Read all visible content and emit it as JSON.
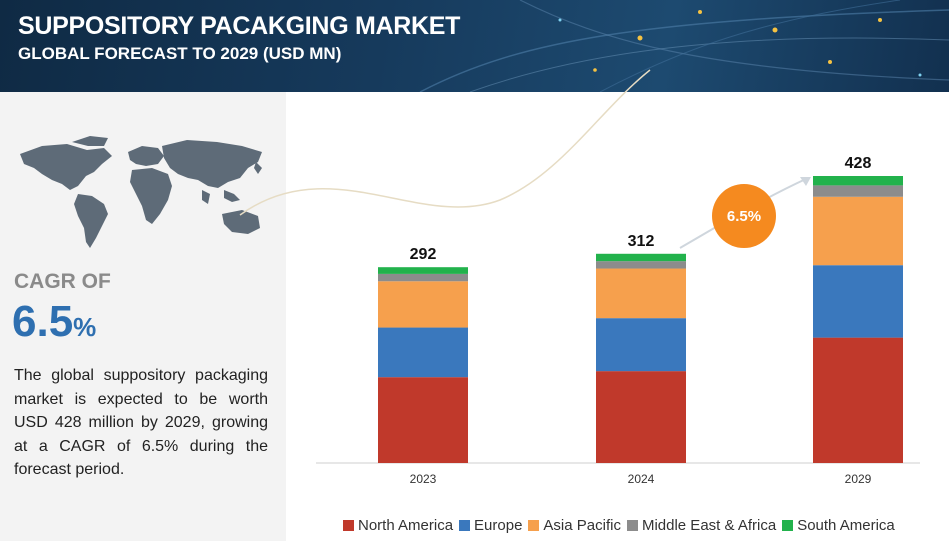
{
  "header": {
    "title": "SUPPOSITORY PACAKGING MARKET",
    "subtitle": "GLOBAL FORECAST TO 2029 (USD MN)"
  },
  "left_panel": {
    "cagr_label": "CAGR OF",
    "cagr_number": "6.5",
    "cagr_percent": "%",
    "description": "The global suppository packaging market is expected to be worth USD 428 million by 2029, growing at a CAGR of 6.5% during the forecast period."
  },
  "cagr_badge": "6.5%",
  "colors": {
    "header_bg": "#163a5c",
    "cagr_blue": "#2e6fb0",
    "badge_orange": "#f58a1f",
    "north_america": "#c0392b",
    "europe": "#3a78bd",
    "asia_pacific": "#f6a04d",
    "middle_east_africa": "#8c8c8c",
    "south_america": "#22b24c"
  },
  "chart_data": {
    "type": "bar",
    "stacked": true,
    "categories": [
      "2023",
      "2024",
      "2029"
    ],
    "totals": [
      292,
      312,
      428
    ],
    "series": [
      {
        "name": "North America",
        "color": "#c0392b",
        "values": [
          128,
          137,
          187
        ]
      },
      {
        "name": "Europe",
        "color": "#3a78bd",
        "values": [
          74,
          79,
          108
        ]
      },
      {
        "name": "Asia Pacific",
        "color": "#f6a04d",
        "values": [
          69,
          74,
          102
        ]
      },
      {
        "name": "Middle East & Africa",
        "color": "#8c8c8c",
        "values": [
          11,
          11,
          17
        ]
      },
      {
        "name": "South America",
        "color": "#22b24c",
        "values": [
          10,
          11,
          14
        ]
      }
    ],
    "ylim": [
      0,
      428
    ],
    "legend_position": "bottom",
    "grid": false
  }
}
